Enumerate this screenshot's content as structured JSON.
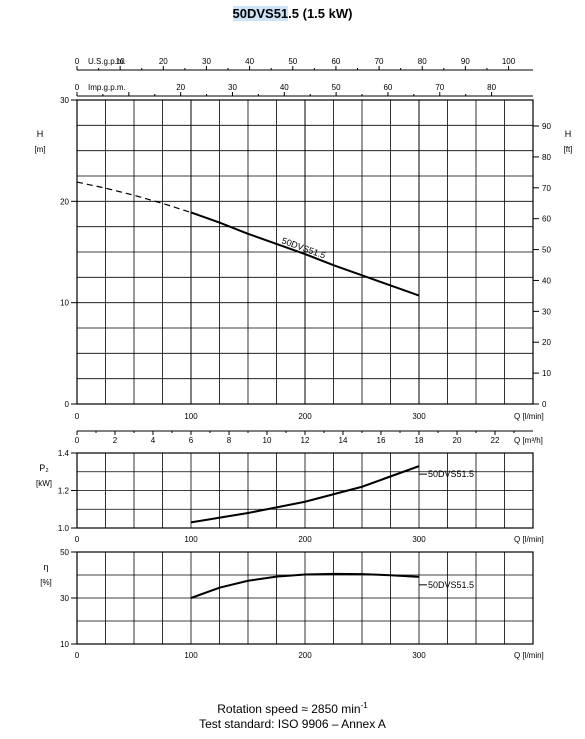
{
  "title": {
    "highlight": "50DVS51",
    "rest": ".5 (1.5 kW)"
  },
  "footer": {
    "rotation_prefix": "Rotation speed ≈ 2850 min",
    "rotation_exp": "-1",
    "standard": "Test standard: ISO 9906 – Annex A"
  },
  "chart_data": [
    {
      "type": "line",
      "title": "50DVS51.5 (1.5 kW)",
      "ylabel": "H",
      "yunit": "[m]",
      "y2label": "H",
      "y2unit": "[ft]",
      "xlabel": "Q [l/min]",
      "xlim": [
        0,
        400
      ],
      "ylim": [
        0,
        30
      ],
      "grid": true,
      "x_ticks": [
        0,
        100,
        200,
        300
      ],
      "y_ticks": [
        0,
        10,
        20,
        30
      ],
      "y2_ticks": [
        0,
        10,
        20,
        30,
        40,
        50,
        60,
        70,
        80,
        90
      ],
      "top_axis_usgpm": {
        "label": "U.S.g.p.m.",
        "ticks": [
          0,
          10,
          20,
          30,
          40,
          50,
          60,
          70,
          80,
          90,
          100
        ]
      },
      "top_axis_impgpm": {
        "label": "Imp.g.p.m.",
        "ticks": [
          0,
          10,
          20,
          30,
          40,
          50,
          60,
          70,
          80
        ]
      },
      "series": [
        {
          "name": "50DVS51.5",
          "dashed_segment": {
            "x": [
              0,
              25,
              50,
              75,
              100
            ],
            "y": [
              21.9,
              21.3,
              20.6,
              19.8,
              18.9
            ]
          },
          "x": [
            100,
            125,
            150,
            175,
            200,
            225,
            250,
            275,
            300
          ],
          "y": [
            18.9,
            17.9,
            16.8,
            15.8,
            14.8,
            13.7,
            12.7,
            11.7,
            10.7
          ]
        }
      ]
    },
    {
      "type": "line",
      "xlabel": "Q [m³/h]",
      "xlim": [
        0,
        24
      ],
      "x_ticks": [
        0,
        2,
        4,
        6,
        8,
        10,
        12,
        14,
        16,
        18,
        20,
        22
      ]
    },
    {
      "type": "line",
      "ylabel": "P₂",
      "yunit": "[kW]",
      "xlabel": "Q [l/min]",
      "xlim": [
        0,
        400
      ],
      "ylim": [
        1.0,
        1.4
      ],
      "y_ticks": [
        1.0,
        1.2,
        1.4
      ],
      "y_tick_labels": [
        "1.0",
        "1.2",
        "1.4"
      ],
      "grid": true,
      "series": [
        {
          "name": "50DVS51.5",
          "x": [
            100,
            150,
            200,
            250,
            300
          ],
          "y": [
            1.03,
            1.08,
            1.14,
            1.22,
            1.33
          ]
        }
      ]
    },
    {
      "type": "line",
      "ylabel": "η",
      "yunit": "[%]",
      "xlabel": "Q [l/min]",
      "xlim": [
        0,
        400
      ],
      "ylim": [
        10,
        50
      ],
      "y_ticks": [
        10,
        30,
        50
      ],
      "grid": true,
      "series": [
        {
          "name": "50DVS51.5",
          "x": [
            100,
            125,
            150,
            175,
            200,
            225,
            250,
            275,
            300
          ],
          "y": [
            30.0,
            34.5,
            37.5,
            39.3,
            40.2,
            40.5,
            40.4,
            39.9,
            39.2
          ]
        }
      ]
    }
  ]
}
